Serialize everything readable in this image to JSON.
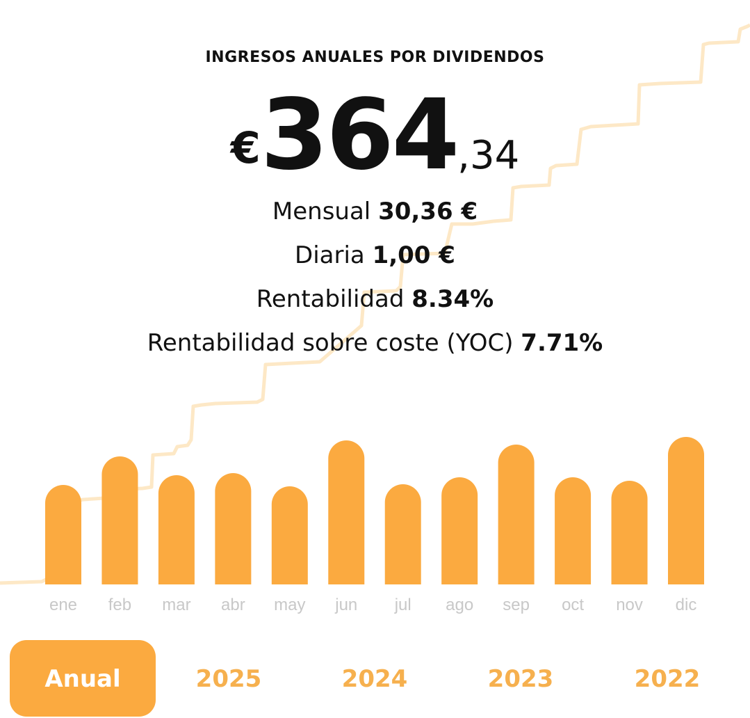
{
  "header": {
    "title": "INGRESOS ANUALES POR DIVIDENDOS",
    "currency_symbol": "€",
    "amount_integer": "364",
    "amount_decimals": ",34"
  },
  "stats": {
    "monthly_label": "Mensual",
    "monthly_value": "30,36 €",
    "daily_label": "Diaria",
    "daily_value": "1,00 €",
    "yield_label": "Rentabilidad",
    "yield_value": "8.34%",
    "yoc_label": "Rentabilidad sobre coste (YOC)",
    "yoc_value": "7.71%"
  },
  "chart_data": {
    "type": "bar",
    "categories": [
      "ene",
      "feb",
      "mar",
      "abr",
      "may",
      "jun",
      "jul",
      "ago",
      "sep",
      "oct",
      "nov",
      "dic"
    ],
    "values": [
      143,
      184,
      157,
      160,
      141,
      207,
      144,
      154,
      201,
      154,
      149,
      212
    ],
    "ylim": [
      0,
      300
    ],
    "grid": false,
    "legend": "none"
  },
  "tabs": [
    {
      "label": "Anual",
      "active": true
    },
    {
      "label": "2025",
      "active": false
    },
    {
      "label": "2024",
      "active": false
    },
    {
      "label": "2023",
      "active": false
    },
    {
      "label": "2022",
      "active": false
    }
  ],
  "colors": {
    "accent": "#fbaa40",
    "accent_text": "#f6b04e",
    "background_line": "#fde8c6",
    "month_label": "#c8c8c8",
    "text": "#111111"
  }
}
